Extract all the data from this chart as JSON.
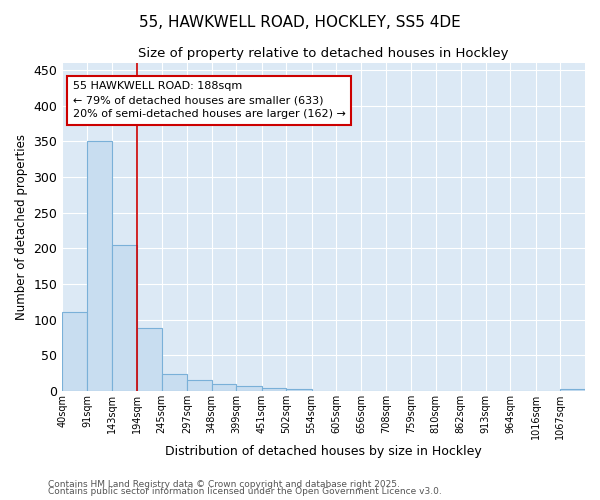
{
  "title1": "55, HAWKWELL ROAD, HOCKLEY, SS5 4DE",
  "title2": "Size of property relative to detached houses in Hockley",
  "xlabel": "Distribution of detached houses by size in Hockley",
  "ylabel": "Number of detached properties",
  "bar_values": [
    110,
    350,
    205,
    88,
    23,
    15,
    9,
    7,
    4,
    2,
    0,
    0,
    0,
    0,
    0,
    0,
    0,
    0,
    0,
    0,
    3
  ],
  "bin_edges": [
    40,
    91,
    143,
    194,
    245,
    297,
    348,
    399,
    451,
    502,
    554,
    605,
    656,
    708,
    759,
    810,
    862,
    913,
    964,
    1016,
    1067,
    1118
  ],
  "bin_labels": [
    "40sqm",
    "91sqm",
    "143sqm",
    "194sqm",
    "245sqm",
    "297sqm",
    "348sqm",
    "399sqm",
    "451sqm",
    "502sqm",
    "554sqm",
    "605sqm",
    "656sqm",
    "708sqm",
    "759sqm",
    "810sqm",
    "862sqm",
    "913sqm",
    "964sqm",
    "1016sqm",
    "1067sqm"
  ],
  "bar_color": "#c8ddf0",
  "bar_edge_color": "#7ab0d8",
  "vline_x": 194,
  "vline_color": "#cc0000",
  "annotation_text": "55 HAWKWELL ROAD: 188sqm\n← 79% of detached houses are smaller (633)\n20% of semi-detached houses are larger (162) →",
  "annotation_box_color": "#cc0000",
  "annotation_text_color": "black",
  "annotation_fill_color": "white",
  "ylim": [
    0,
    460
  ],
  "plot_bg_color": "#dce9f5",
  "figure_bg_color": "#ffffff",
  "grid_color": "white",
  "footnote1": "Contains HM Land Registry data © Crown copyright and database right 2025.",
  "footnote2": "Contains public sector information licensed under the Open Government Licence v3.0."
}
